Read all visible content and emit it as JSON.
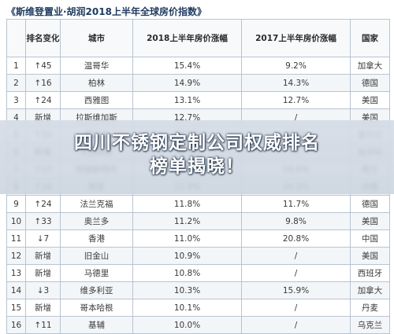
{
  "title": "《斯维登置业·胡润2018上半年全球房价指数》",
  "headers": [
    "",
    "排名变化",
    "城市",
    "2018上半年房价涨幅",
    "2017上半年房价涨幅",
    "国家"
  ],
  "rows": [
    [
      "1",
      "↑45",
      "温哥华",
      "15.4%",
      "9.2%",
      "加拿大"
    ],
    [
      "2",
      "↑16",
      "柏林",
      "14.9%",
      "14.3%",
      "德国"
    ],
    [
      "3",
      "↑24",
      "西雅图",
      "13.1%",
      "12.7%",
      "美国"
    ],
    [
      "4",
      "新增",
      "拉斯维加斯",
      "12.7%",
      "/",
      "美国"
    ],
    [
      "5",
      "↑33",
      "都柏林",
      "12.5%",
      "11.2%",
      "爱尔兰"
    ],
    [
      "6",
      "新增",
      "布达佩斯",
      "12.3%",
      "/",
      "匈牙利"
    ],
    [
      "7",
      "↑17",
      "阿姆斯特丹",
      "12.0%",
      "14.8%",
      "荷兰"
    ],
    [
      "8",
      "↑14",
      "西安",
      "11.9%",
      "14.3%",
      "中国"
    ],
    [
      "9",
      "↑24",
      "法兰克福",
      "11.8%",
      "11.7%",
      "德国"
    ],
    [
      "10",
      "↑33",
      "奥兰多",
      "11.2%",
      "9.8%",
      "美国"
    ],
    [
      "11",
      "↓7",
      "香港",
      "11.0%",
      "20.8%",
      "中国"
    ],
    [
      "12",
      "新增",
      "旧金山",
      "10.9%",
      "/",
      "美国"
    ],
    [
      "13",
      "新增",
      "马德里",
      "10.8%",
      "/",
      "西班牙"
    ],
    [
      "14",
      "↓3",
      "维多利亚",
      "10.3%",
      "15.9%",
      "加拿大"
    ],
    [
      "15",
      "新增",
      "哥本哈根",
      "10.1%",
      "/",
      "丹麦"
    ],
    [
      "16",
      "↑11",
      "基辅",
      "10.0%",
      "/",
      "乌克兰"
    ]
  ],
  "headline_line1": "四川不锈钢定制公司权威排名",
  "headline_line2": "榜单揭晓！"
}
